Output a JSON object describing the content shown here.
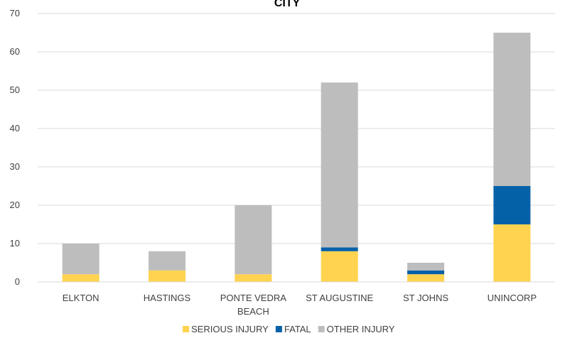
{
  "chart_data": {
    "type": "bar",
    "stacked": true,
    "title": "CITY",
    "categories": [
      [
        "ELKTON"
      ],
      [
        "HASTINGS"
      ],
      [
        "PONTE VEDRA",
        "BEACH"
      ],
      [
        "ST AUGUSTINE"
      ],
      [
        "ST JOHNS"
      ],
      [
        "UNINCORP"
      ]
    ],
    "series": [
      {
        "name": "SERIOUS INJURY",
        "color": "#FFD34F",
        "values": [
          2,
          3,
          2,
          8,
          2,
          15
        ]
      },
      {
        "name": "FATAL",
        "color": "#0461A8",
        "values": [
          0,
          0,
          0,
          1,
          1,
          10
        ]
      },
      {
        "name": "OTHER INJURY",
        "color": "#BDBDBD",
        "values": [
          8,
          5,
          18,
          43,
          2,
          40
        ]
      }
    ],
    "ylim": [
      0,
      70
    ],
    "yticks": [
      0,
      10,
      20,
      30,
      40,
      50,
      60,
      70
    ],
    "grid": true,
    "legend": "bottom"
  }
}
